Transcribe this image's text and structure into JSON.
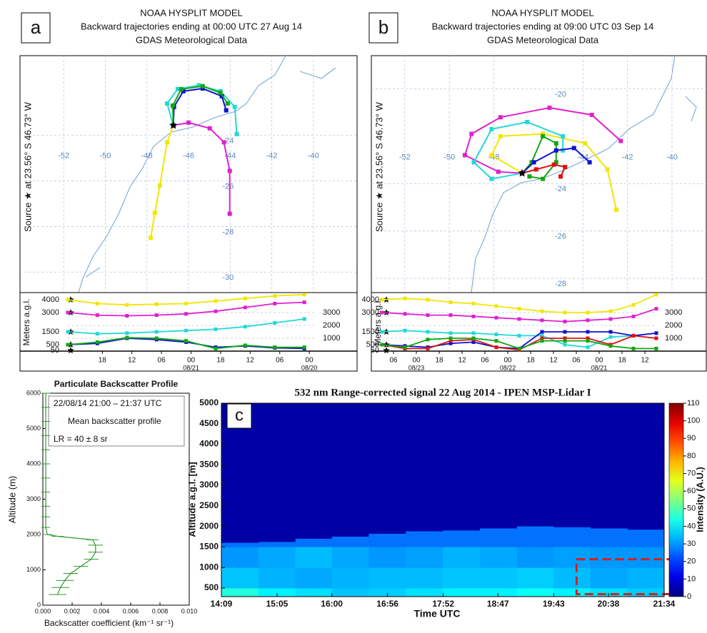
{
  "chart_data": [
    {
      "type": "trajectory",
      "panel_label": "a",
      "title": [
        "NOAA HYSPLIT MODEL",
        "Backward trajectories ending at 00:00 UTC 27 Aug 14",
        "GDAS Meteorological Data"
      ],
      "ylabel": "Source ★ at 23.56° S 46.73° W",
      "xlim": [
        -54.1,
        -37.9
      ],
      "ylim": [
        -30.9,
        -20.5
      ],
      "xticks": [
        -52,
        -50,
        -48,
        -46,
        -44,
        -42,
        -40
      ],
      "yticks": [
        -24,
        -26,
        -28,
        -30
      ],
      "grid": true,
      "source": {
        "lon": -46.73,
        "lat": -23.56
      },
      "series": [
        {
          "color": "#f2e600",
          "lon": [
            -46.73,
            -47.03,
            -47.38,
            -47.62,
            -47.82
          ],
          "lat": [
            -23.56,
            -24.3,
            -26.2,
            -27.4,
            -28.5
          ]
        },
        {
          "color": "#e020d0",
          "lon": [
            -46.73,
            -46.0,
            -44.98,
            -44.3,
            -44.02,
            -44.02
          ],
          "lat": [
            -23.56,
            -23.44,
            -23.69,
            -24.3,
            -25.56,
            -27.44
          ]
        },
        {
          "color": "#22d8d8",
          "lon": [
            -46.73,
            -47.03,
            -46.52,
            -45.5,
            -44.47,
            -43.78,
            -43.68
          ],
          "lat": [
            -23.56,
            -22.6,
            -21.97,
            -21.8,
            -22.06,
            -22.75,
            -23.94
          ]
        },
        {
          "color": "#1010d0",
          "lon": [
            -46.73,
            -46.7,
            -46.25,
            -45.32,
            -44.4,
            -44.19
          ],
          "lat": [
            -23.56,
            -22.75,
            -22.06,
            -21.94,
            -22.28,
            -22.9
          ]
        },
        {
          "color": "#10a810",
          "lon": [
            -46.73,
            -46.76,
            -46.35,
            -45.32,
            -44.47,
            -44.12
          ],
          "lat": [
            -23.56,
            -22.69,
            -21.97,
            -21.84,
            -22.13,
            -22.6
          ]
        }
      ]
    },
    {
      "type": "altitude",
      "ylabel": "Meters a.g.l.",
      "xlim": [
        0,
        50
      ],
      "ylim": [
        0,
        4500
      ],
      "yticks": [
        1000,
        2000,
        3000
      ],
      "start_heights": [
        4000,
        3000,
        1500,
        500,
        50
      ],
      "xticks": [
        {
          "value": 7,
          "label": "18"
        },
        {
          "value": 13,
          "label": "12"
        },
        {
          "value": 19,
          "label": "06"
        },
        {
          "value": 25,
          "label": "00"
        },
        {
          "value": 31,
          "label": "18"
        },
        {
          "value": 37,
          "label": "12"
        },
        {
          "value": 43,
          "label": "06"
        },
        {
          "value": 49,
          "label": "00"
        }
      ],
      "xdates": [
        {
          "value": 25,
          "label": "08/21"
        },
        {
          "value": 49,
          "label": "08/20"
        }
      ],
      "x": [
        0,
        6,
        12,
        18,
        24,
        30,
        36,
        42,
        48
      ],
      "series": [
        {
          "color": "#f2e600",
          "values": [
            4000,
            3700,
            3600,
            3650,
            3700,
            3900,
            4100,
            4300,
            4400
          ]
        },
        {
          "color": "#e020d0",
          "values": [
            3000,
            2800,
            2750,
            2800,
            2900,
            3100,
            3400,
            3700,
            3800
          ]
        },
        {
          "color": "#22d8d8",
          "values": [
            1500,
            1350,
            1400,
            1500,
            1600,
            1700,
            1900,
            2200,
            2500
          ]
        },
        {
          "color": "#1010d0",
          "values": [
            500,
            600,
            1000,
            900,
            700,
            300,
            400,
            250,
            200
          ]
        },
        {
          "color": "#10a810",
          "values": [
            500,
            700,
            1050,
            1000,
            800,
            200,
            450,
            300,
            300
          ]
        }
      ]
    },
    {
      "type": "trajectory",
      "panel_label": "b",
      "title": [
        "NOAA HYSPLIT MODEL",
        "Backward trajectories ending at 09:00 UTC 03 Sep 14",
        "GDAS Meteorological Data"
      ],
      "ylabel": "Source ★ at 23.56° S 46.73° W",
      "xlim": [
        -53.5,
        -38.46
      ],
      "ylim": [
        -28.6,
        -18.6
      ],
      "xticks": [
        -52,
        -50,
        -48,
        -44,
        -42,
        -40
      ],
      "yticks": [
        -20,
        -24,
        -26,
        -28
      ],
      "grid": true,
      "source": {
        "lon": -46.73,
        "lat": -23.56
      },
      "series": [
        {
          "color": "#f2e600",
          "lon": [
            -46.73,
            -48.1,
            -47.7,
            -45.8,
            -43.9,
            -42.9,
            -42.5
          ],
          "lat": [
            -23.56,
            -22.8,
            -22.0,
            -21.9,
            -22.3,
            -23.4,
            -25.1
          ]
        },
        {
          "color": "#e020d0",
          "lon": [
            -46.73,
            -47.8,
            -49.3,
            -49.0,
            -47.7,
            -45.5,
            -43.6,
            -42.3
          ],
          "lat": [
            -23.56,
            -23.5,
            -22.8,
            -21.9,
            -21.2,
            -20.8,
            -21.1,
            -22.2
          ]
        },
        {
          "color": "#22d8d8",
          "lon": [
            -46.73,
            -48.1,
            -48.9,
            -48.1,
            -46.5,
            -44.9,
            -44.9
          ],
          "lat": [
            -23.56,
            -23.8,
            -23.1,
            -21.7,
            -21.4,
            -22.0,
            -22.6
          ]
        },
        {
          "color": "#10a810",
          "lon": [
            -46.73,
            -46.3,
            -45.8,
            -45.2,
            -45.2,
            -45.8,
            -46.4
          ],
          "lat": [
            -23.56,
            -23.1,
            -22.0,
            -22.3,
            -23.1,
            -23.8,
            -23.7
          ]
        },
        {
          "color": "#1010d0",
          "lon": [
            -46.73,
            -46.2,
            -45.2,
            -44.4,
            -43.7
          ],
          "lat": [
            -23.56,
            -23.1,
            -22.6,
            -22.5,
            -23.1
          ]
        },
        {
          "color": "#e01010",
          "lon": [
            -46.73,
            -46.1,
            -45.3,
            -44.8,
            -45.0
          ],
          "lat": [
            -23.56,
            -23.4,
            -23.2,
            -23.3,
            -23.7
          ]
        }
      ]
    },
    {
      "type": "altitude",
      "ylabel": "Meters a.g.l.",
      "xlim": [
        0,
        72
      ],
      "ylim": [
        0,
        4500
      ],
      "yticks": [
        1000,
        2000,
        3000
      ],
      "start_heights": [
        4000,
        3000,
        1500,
        500,
        50
      ],
      "xticks": [
        {
          "value": 3,
          "label": "06"
        },
        {
          "value": 9,
          "label": "00"
        },
        {
          "value": 15,
          "label": "18"
        },
        {
          "value": 21,
          "label": "12"
        },
        {
          "value": 27,
          "label": "06"
        },
        {
          "value": 33,
          "label": "00"
        },
        {
          "value": 39,
          "label": "18"
        },
        {
          "value": 45,
          "label": "12"
        },
        {
          "value": 51,
          "label": "06"
        },
        {
          "value": 57,
          "label": "00"
        },
        {
          "value": 63,
          "label": "18"
        },
        {
          "value": 69,
          "label": "12"
        }
      ],
      "xdates": [
        {
          "value": 9,
          "label": "08/23"
        },
        {
          "value": 33,
          "label": "08/22"
        },
        {
          "value": 57,
          "label": "08/21"
        }
      ],
      "x": [
        0,
        6,
        12,
        18,
        24,
        30,
        36,
        42,
        48,
        54,
        60,
        66,
        72
      ],
      "series": [
        {
          "color": "#f2e600",
          "values": [
            4000,
            4100,
            4000,
            3800,
            3700,
            3500,
            3300,
            3100,
            3000,
            3000,
            3100,
            3600,
            4400
          ]
        },
        {
          "color": "#e020d0",
          "values": [
            3000,
            2900,
            2800,
            2800,
            2700,
            2600,
            2500,
            2400,
            2300,
            2400,
            2500,
            2700,
            3300
          ]
        },
        {
          "color": "#22d8d8",
          "values": [
            1500,
            1600,
            1500,
            1400,
            1400,
            1300,
            1200,
            1200,
            500,
            300,
            1100,
            1200,
            1000
          ]
        },
        {
          "color": "#1010d0",
          "values": [
            500,
            400,
            300,
            600,
            700,
            300,
            200,
            1500,
            1500,
            1500,
            1500,
            1200,
            1400
          ]
        },
        {
          "color": "#e01010",
          "values": [
            500,
            200,
            200,
            800,
            900,
            300,
            100,
            1000,
            1000,
            1000,
            500,
            1200,
            1000
          ]
        },
        {
          "color": "#10a810",
          "values": [
            500,
            300,
            900,
            1000,
            1000,
            800,
            200,
            800,
            800,
            800,
            400,
            200,
            200
          ]
        }
      ]
    },
    {
      "type": "profile",
      "title": "Particulate Backscatter Profile",
      "notes": [
        "22/08/14 21:00 – 21:37  UTC",
        "Mean backscatter profile",
        "LR = 40 ± 8 sr"
      ],
      "xlabel": "Backscatter  coefficient (km⁻¹ sr⁻¹)",
      "ylabel": "Altitude (m)",
      "color": "#2e9a2e",
      "xlim": [
        0,
        0.01
      ],
      "ylim": [
        0,
        6000
      ],
      "xticks": [
        {
          "value": 0,
          "label": "0.000"
        },
        {
          "value": 0.002,
          "label": "0.002"
        },
        {
          "value": 0.004,
          "label": "0.004"
        },
        {
          "value": 0.006,
          "label": "0.006"
        },
        {
          "value": 0.008,
          "label": "0.008"
        },
        {
          "value": 0.01,
          "label": "0.010"
        }
      ],
      "yticks": [
        0,
        1000,
        2000,
        3000,
        4000,
        5000,
        6000
      ],
      "altitude": [
        300,
        500,
        700,
        900,
        1100,
        1300,
        1500,
        1700,
        1850,
        1950,
        2000,
        2200,
        2500,
        2800,
        3200,
        3600,
        4000,
        4400,
        4800,
        5200,
        5600,
        6000
      ],
      "values": [
        0.001,
        0.0012,
        0.0015,
        0.0019,
        0.0026,
        0.0033,
        0.0036,
        0.0036,
        0.0034,
        0.001,
        0.0003,
        0.0002,
        0.0002,
        0.0002,
        0.0002,
        0.0002,
        0.0002,
        0.0002,
        0.0002,
        0.0002,
        0.0002,
        0.0002
      ],
      "errors": [
        0.0006,
        0.0006,
        0.0006,
        0.0005,
        0.0005,
        0.0005,
        0.0005,
        0.0005,
        0.0004,
        0.0004,
        0.0003,
        0.0003,
        0.0003,
        0.0003,
        0.0003,
        0.0003,
        0.0003,
        0.0003,
        0.0003,
        0.0003,
        0.0003,
        0.0003
      ]
    },
    {
      "type": "heatmap",
      "panel_label": "c",
      "title": "532 nm Range-corrected signal  22 Aug 2014 - IPEN MSP-Lidar I",
      "xlabel": "Time UTC",
      "ylabel": "Altitude a.g.l. [m]",
      "zlabel": "Intensity (A.U.)",
      "xlim": [
        14.15,
        21.567
      ],
      "ylim": [
        290,
        5000
      ],
      "zlim": [
        0,
        110
      ],
      "xticks": [
        {
          "value": 14.15,
          "label": "14:09"
        },
        {
          "value": 15.083,
          "label": "15:05"
        },
        {
          "value": 16.0,
          "label": "16:00"
        },
        {
          "value": 16.933,
          "label": "16:56"
        },
        {
          "value": 17.867,
          "label": "17:52"
        },
        {
          "value": 18.783,
          "label": "18:47"
        },
        {
          "value": 19.717,
          "label": "19:43"
        },
        {
          "value": 20.633,
          "label": "20:38"
        },
        {
          "value": 21.567,
          "label": "21:34"
        }
      ],
      "yticks": [
        500,
        1000,
        1500,
        2000,
        2500,
        3000,
        3500,
        4000,
        4500,
        5000
      ],
      "zticks": [
        0,
        10,
        20,
        30,
        40,
        50,
        60,
        70,
        80,
        90,
        100,
        110
      ],
      "x_bins": [
        14.15,
        14.77,
        15.39,
        16.0,
        16.62,
        17.24,
        17.86,
        18.48,
        19.1,
        19.71,
        20.33,
        20.95,
        21.567
      ],
      "y_bins": [
        290,
        500,
        1000,
        1500
      ],
      "z": [
        [
          45,
          40,
          38,
          35,
          36,
          38,
          40,
          40,
          42,
          40,
          38,
          36
        ],
        [
          35,
          33,
          32,
          33,
          34,
          34,
          35,
          35,
          36,
          34,
          32,
          33
        ],
        [
          30,
          32,
          34,
          32,
          30,
          31,
          33,
          32,
          30,
          31,
          30,
          30
        ]
      ],
      "top": [
        1600,
        1620,
        1700,
        1750,
        1820,
        1880,
        1900,
        1950,
        2000,
        1980,
        1950,
        1920
      ],
      "top_z": 26,
      "background_z": 4,
      "highlight": {
        "x": [
          20.1,
          21.67
        ],
        "y": [
          350,
          1200
        ]
      }
    }
  ]
}
